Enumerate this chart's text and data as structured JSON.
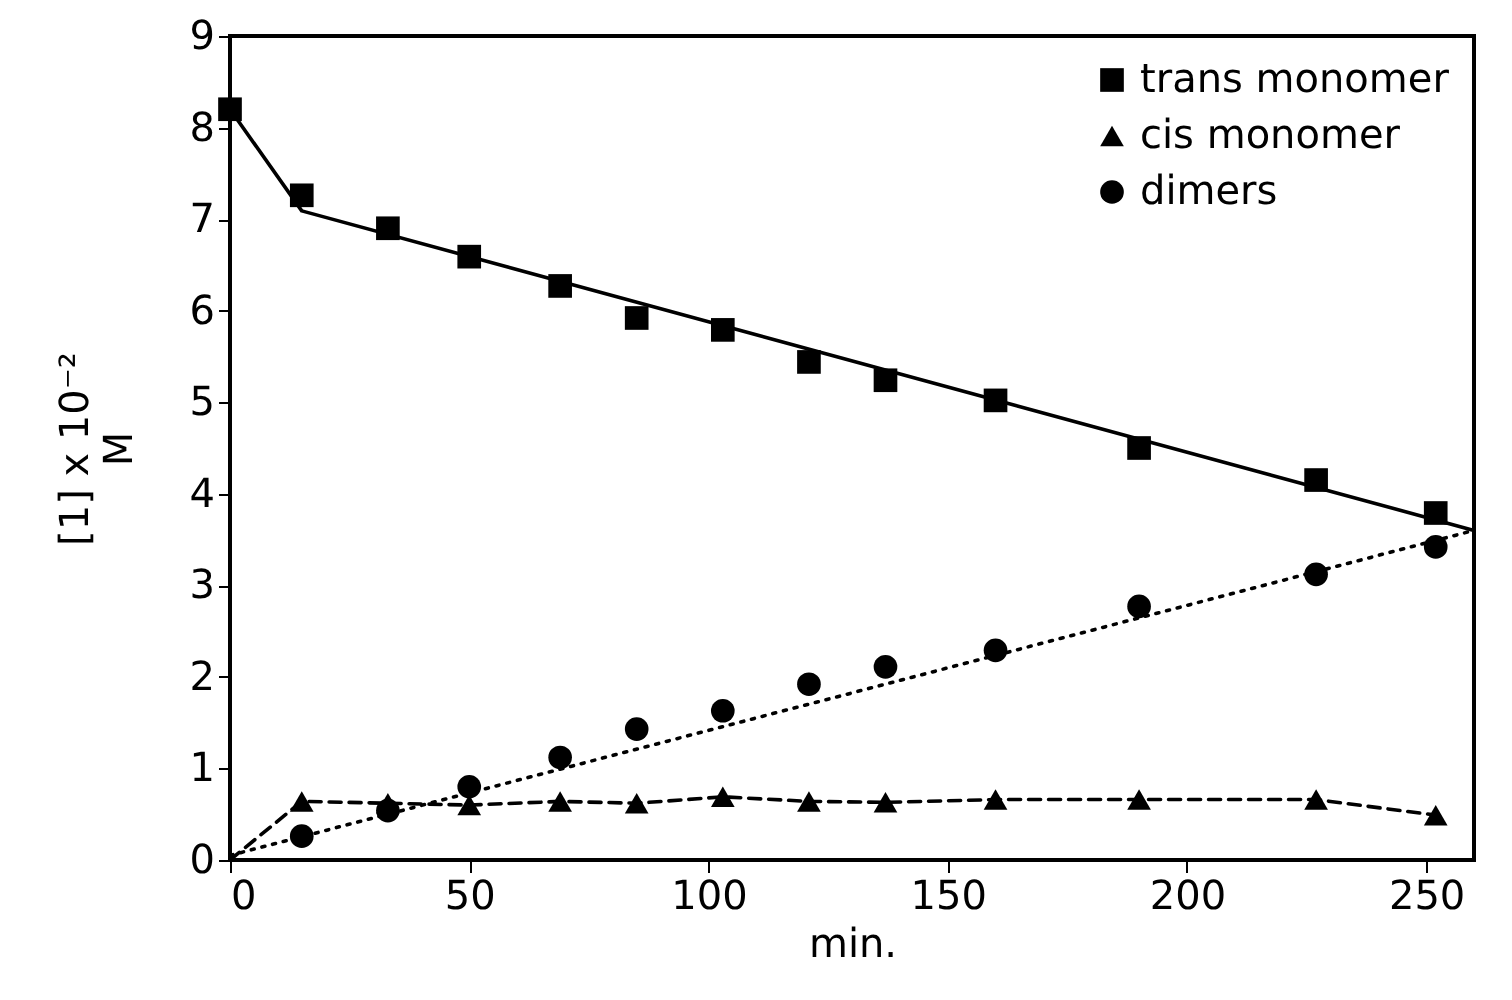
{
  "chart_data": {
    "type": "scatter",
    "xlabel": "min.",
    "ylabel": [
      "[1] x 10⁻²",
      "M"
    ],
    "xlim": [
      0,
      260
    ],
    "xticks": [
      0,
      50,
      100,
      150,
      200,
      250
    ],
    "ylim": [
      0,
      9
    ],
    "yticks": [
      0,
      1,
      2,
      3,
      4,
      5,
      6,
      7,
      8,
      9
    ],
    "grid": false,
    "legend": "top right",
    "series": [
      {
        "name": "trans monomer",
        "marker": "square",
        "color": "#000000",
        "x": [
          0,
          15,
          33,
          50,
          69,
          85,
          103,
          121,
          137,
          160,
          190,
          227,
          252
        ],
        "values": [
          8.2,
          7.26,
          6.9,
          6.59,
          6.27,
          5.92,
          5.79,
          5.44,
          5.24,
          5.02,
          4.5,
          4.15,
          3.79
        ]
      },
      {
        "name": "cis monomer",
        "marker": "triangle",
        "color": "#000000",
        "x": [
          15,
          33,
          50,
          69,
          85,
          103,
          121,
          137,
          160,
          190,
          227,
          252
        ],
        "values": [
          0.64,
          0.62,
          0.6,
          0.64,
          0.62,
          0.69,
          0.64,
          0.63,
          0.66,
          0.66,
          0.66,
          0.49
        ]
      },
      {
        "name": "dimers",
        "marker": "circle",
        "color": "#000000",
        "x": [
          15,
          33,
          50,
          69,
          85,
          103,
          121,
          137,
          160,
          190,
          227,
          252
        ],
        "values": [
          0.26,
          0.54,
          0.8,
          1.12,
          1.43,
          1.63,
          1.92,
          2.11,
          2.29,
          2.77,
          3.12,
          3.42
        ]
      },
      {
        "type": "line",
        "line_style": "solid",
        "color": "#000000",
        "x": [
          0,
          15,
          260
        ],
        "values": [
          8.2,
          7.09,
          3.6
        ]
      },
      {
        "type": "line",
        "line_style": "dashed",
        "color": "#000000",
        "x": [
          0,
          15,
          33,
          50,
          69,
          85,
          103,
          121,
          137,
          160,
          190,
          227,
          252
        ],
        "values": [
          0,
          0.64,
          0.62,
          0.6,
          0.64,
          0.62,
          0.69,
          0.64,
          0.63,
          0.66,
          0.66,
          0.66,
          0.49
        ]
      },
      {
        "type": "line",
        "line_style": "dotted",
        "color": "#000000",
        "x": [
          0,
          260
        ],
        "values": [
          0.05,
          3.6
        ]
      }
    ]
  }
}
